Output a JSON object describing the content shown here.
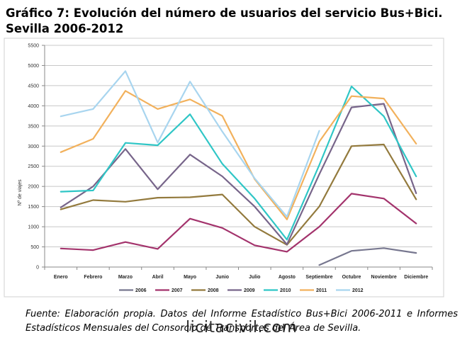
{
  "title": "Gráfico 7: Evolución del número de usuarios del servicio Bus+Bici. Sevilla 2006-2012",
  "caption": "Fuente: Elaboración propia. Datos del Informe Estadístico Bus+Bici 2006-2011 e Informes Estadísticos Mensuales del Consorcio de Transportes del Área de Sevilla.",
  "watermark": "licitacivil.com",
  "chart_data": {
    "type": "line",
    "title": "",
    "xlabel": "",
    "ylabel": "Nº de viajes",
    "ylim": [
      0,
      5500
    ],
    "yticks": [
      0,
      500,
      1000,
      1500,
      2000,
      2500,
      3000,
      3500,
      4000,
      4500,
      5000,
      5500
    ],
    "grid": true,
    "legend_position": "bottom",
    "categories": [
      "Enero",
      "Febrero",
      "Marzo",
      "Abril",
      "Mayo",
      "Junio",
      "Julio",
      "Agosto",
      "Septiembre",
      "Octubre",
      "Noviembre",
      "Diciembre"
    ],
    "series": [
      {
        "name": "2006",
        "color": "#77778f",
        "values": [
          null,
          null,
          null,
          null,
          null,
          null,
          null,
          null,
          50,
          400,
          470,
          350
        ]
      },
      {
        "name": "2007",
        "color": "#a3336c",
        "values": [
          460,
          420,
          620,
          450,
          1200,
          970,
          540,
          380,
          1000,
          1820,
          1700,
          1080
        ]
      },
      {
        "name": "2008",
        "color": "#937a3d",
        "values": [
          1430,
          1660,
          1620,
          1720,
          1730,
          1800,
          1000,
          550,
          1500,
          3000,
          3040,
          1680
        ]
      },
      {
        "name": "2009",
        "color": "#77658a",
        "values": [
          1480,
          2000,
          2930,
          1930,
          2790,
          2250,
          1500,
          560,
          2300,
          3960,
          4050,
          1830
        ]
      },
      {
        "name": "2010",
        "color": "#2fc6c6",
        "values": [
          1870,
          1900,
          3080,
          3020,
          3790,
          2560,
          1700,
          680,
          2530,
          4480,
          3740,
          2250
        ]
      },
      {
        "name": "2011",
        "color": "#f2b15c",
        "values": [
          2850,
          3180,
          4370,
          3920,
          4160,
          3750,
          2180,
          1180,
          3110,
          4240,
          4180,
          3060
        ]
      },
      {
        "name": "2012",
        "color": "#a8d5ef",
        "values": [
          3740,
          3920,
          4860,
          3090,
          4600,
          3360,
          2200,
          1250,
          3380,
          null,
          null,
          null
        ]
      }
    ]
  }
}
